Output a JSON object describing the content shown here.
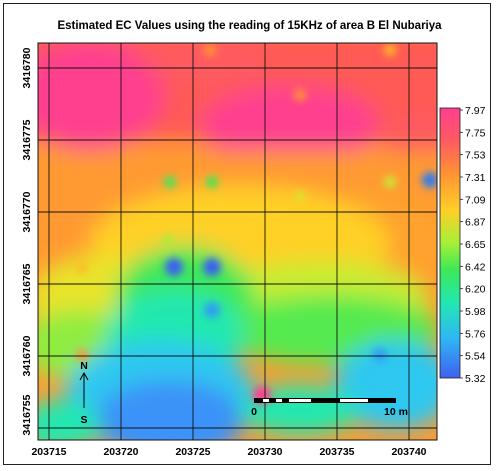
{
  "title": "Estimated EC Values using the reading of 15KHz of area B El Nubariya",
  "x_ticks": [
    "203715",
    "203720",
    "203725",
    "203730",
    "203735",
    "203740"
  ],
  "y_ticks": [
    "3416780",
    "3416775",
    "3416770",
    "3416765",
    "3416760",
    "3416755"
  ],
  "legend": {
    "values": [
      "7.97",
      "7.75",
      "7.53",
      "7.31",
      "7.09",
      "6.87",
      "6.65",
      "6.42",
      "6.20",
      "5.98",
      "5.76",
      "5.54",
      "5.32"
    ],
    "colors": [
      "#ff3f8f",
      "#ff4a7a",
      "#ff5a60",
      "#ff7248",
      "#ff9632",
      "#ffbb28",
      "#f2e42a",
      "#a6ef38",
      "#3ee858",
      "#22e8b0",
      "#2ec8f0",
      "#3a92f8",
      "#4060f0"
    ]
  },
  "north_arrow": {
    "north": "N",
    "south": "S"
  },
  "scale_bar": {
    "start": "0",
    "end": "10 m"
  }
}
